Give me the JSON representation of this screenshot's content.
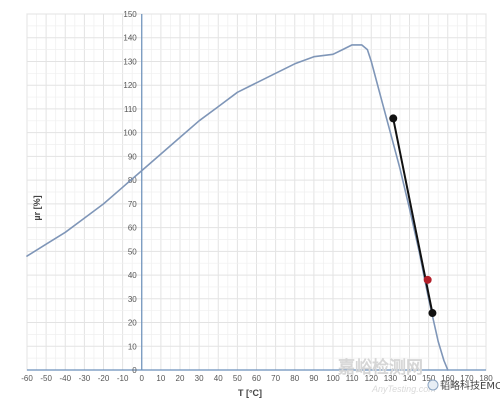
{
  "chart_data": {
    "type": "line",
    "xlabel": "T [°C]",
    "ylabel": "µr [%]",
    "xlim": [
      -60,
      180
    ],
    "ylim": [
      0,
      150
    ],
    "x_ticks": [
      -60,
      -50,
      -40,
      -30,
      -20,
      -10,
      0,
      10,
      20,
      30,
      40,
      50,
      60,
      70,
      80,
      90,
      100,
      110,
      120,
      130,
      140,
      150,
      160,
      170,
      180
    ],
    "y_ticks": [
      0,
      10,
      20,
      30,
      40,
      50,
      60,
      70,
      80,
      90,
      100,
      110,
      120,
      130,
      140,
      150
    ],
    "grid": true,
    "series": [
      {
        "color": "#7f96b8",
        "x": [
          -60,
          -50,
          -40,
          -30,
          -20,
          -10,
          0,
          10,
          20,
          30,
          40,
          50,
          60,
          70,
          80,
          90,
          100,
          105,
          110,
          115,
          118,
          120,
          125,
          130,
          135,
          140,
          145,
          150,
          155,
          158,
          160
        ],
        "y": [
          48,
          53,
          58,
          64,
          70,
          77,
          84,
          91,
          98,
          105,
          111,
          117,
          121,
          125,
          129,
          132,
          133,
          135,
          137,
          137,
          135,
          130,
          115,
          100,
          85,
          68,
          50,
          30,
          12,
          4,
          0
        ]
      },
      {
        "color": "#111111",
        "x": [
          131.5,
          152
        ],
        "y": [
          106,
          24
        ]
      }
    ],
    "markers": [
      {
        "x": 131.5,
        "y": 106,
        "color": "#111111"
      },
      {
        "x": 149.5,
        "y": 38,
        "color": "#b3202a"
      },
      {
        "x": 152,
        "y": 24,
        "color": "#111111"
      }
    ]
  },
  "watermark": {
    "cn_main": "嘉峪检测网",
    "en_main": "AnyTesting.com",
    "logo_text": "韬略科技EMC"
  }
}
